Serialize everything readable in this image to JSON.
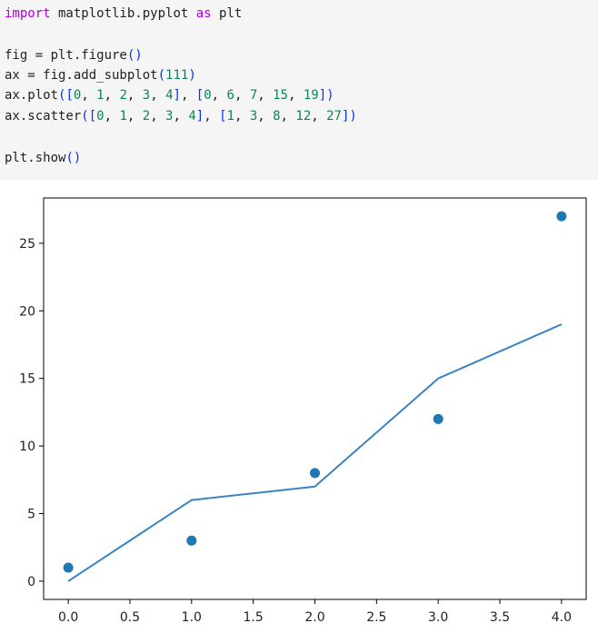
{
  "code_cell": {
    "lines": [
      {
        "tokens": [
          {
            "t": "import",
            "c": "kw"
          },
          {
            "t": " matplotlib.pyplot ",
            "c": ""
          },
          {
            "t": "as",
            "c": "kw"
          },
          {
            "t": " plt",
            "c": ""
          }
        ]
      },
      {
        "tokens": []
      },
      {
        "tokens": [
          {
            "t": "fig = plt.figure",
            "c": ""
          },
          {
            "t": "()",
            "c": "br"
          }
        ]
      },
      {
        "tokens": [
          {
            "t": "ax = fig.add_subplot",
            "c": ""
          },
          {
            "t": "(",
            "c": "br"
          },
          {
            "t": "111",
            "c": "num"
          },
          {
            "t": ")",
            "c": "br"
          }
        ]
      },
      {
        "tokens": [
          {
            "t": "ax.plot",
            "c": ""
          },
          {
            "t": "([",
            "c": "br"
          },
          {
            "t": "0",
            "c": "num"
          },
          {
            "t": ", ",
            "c": ""
          },
          {
            "t": "1",
            "c": "num"
          },
          {
            "t": ", ",
            "c": ""
          },
          {
            "t": "2",
            "c": "num"
          },
          {
            "t": ", ",
            "c": ""
          },
          {
            "t": "3",
            "c": "num"
          },
          {
            "t": ", ",
            "c": ""
          },
          {
            "t": "4",
            "c": "num"
          },
          {
            "t": "]",
            "c": "br"
          },
          {
            "t": ", ",
            "c": ""
          },
          {
            "t": "[",
            "c": "br"
          },
          {
            "t": "0",
            "c": "num"
          },
          {
            "t": ", ",
            "c": ""
          },
          {
            "t": "6",
            "c": "num"
          },
          {
            "t": ", ",
            "c": ""
          },
          {
            "t": "7",
            "c": "num"
          },
          {
            "t": ", ",
            "c": ""
          },
          {
            "t": "15",
            "c": "num"
          },
          {
            "t": ", ",
            "c": ""
          },
          {
            "t": "19",
            "c": "num"
          },
          {
            "t": "])",
            "c": "br"
          }
        ]
      },
      {
        "tokens": [
          {
            "t": "ax.scatter",
            "c": ""
          },
          {
            "t": "([",
            "c": "br"
          },
          {
            "t": "0",
            "c": "num"
          },
          {
            "t": ", ",
            "c": ""
          },
          {
            "t": "1",
            "c": "num"
          },
          {
            "t": ", ",
            "c": ""
          },
          {
            "t": "2",
            "c": "num"
          },
          {
            "t": ", ",
            "c": ""
          },
          {
            "t": "3",
            "c": "num"
          },
          {
            "t": ", ",
            "c": ""
          },
          {
            "t": "4",
            "c": "num"
          },
          {
            "t": "]",
            "c": "br"
          },
          {
            "t": ", ",
            "c": ""
          },
          {
            "t": "[",
            "c": "br"
          },
          {
            "t": "1",
            "c": "num"
          },
          {
            "t": ", ",
            "c": ""
          },
          {
            "t": "3",
            "c": "num"
          },
          {
            "t": ", ",
            "c": ""
          },
          {
            "t": "8",
            "c": "num"
          },
          {
            "t": ", ",
            "c": ""
          },
          {
            "t": "12",
            "c": "num"
          },
          {
            "t": ", ",
            "c": ""
          },
          {
            "t": "27",
            "c": "num"
          },
          {
            "t": "])",
            "c": "br"
          }
        ]
      },
      {
        "tokens": []
      },
      {
        "tokens": [
          {
            "t": "plt.show",
            "c": ""
          },
          {
            "t": "()",
            "c": "br"
          }
        ]
      }
    ],
    "colors": {
      "keyword": "#af00db",
      "number": "#098658",
      "bracket": "#0431fa",
      "background": "#f5f5f5"
    }
  },
  "chart_data": {
    "type": "line",
    "title": "",
    "xlabel": "",
    "ylabel": "",
    "xlim": [
      -0.2,
      4.2
    ],
    "ylim": [
      -1.35,
      28.35
    ],
    "xticks": [
      0.0,
      0.5,
      1.0,
      1.5,
      2.0,
      2.5,
      3.0,
      3.5,
      4.0
    ],
    "xtick_labels": [
      "0.0",
      "0.5",
      "1.0",
      "1.5",
      "2.0",
      "2.5",
      "3.0",
      "3.5",
      "4.0"
    ],
    "yticks": [
      0,
      5,
      10,
      15,
      20,
      25
    ],
    "ytick_labels": [
      "0",
      "5",
      "10",
      "15",
      "20",
      "25"
    ],
    "grid": false,
    "series": [
      {
        "kind": "line",
        "x": [
          0,
          1,
          2,
          3,
          4
        ],
        "y": [
          0,
          6,
          7,
          15,
          19
        ],
        "color": "#3a84c1"
      },
      {
        "kind": "scatter",
        "x": [
          0,
          1,
          2,
          3,
          4
        ],
        "y": [
          1,
          3,
          8,
          12,
          27
        ],
        "color": "#1f77b4"
      }
    ]
  }
}
